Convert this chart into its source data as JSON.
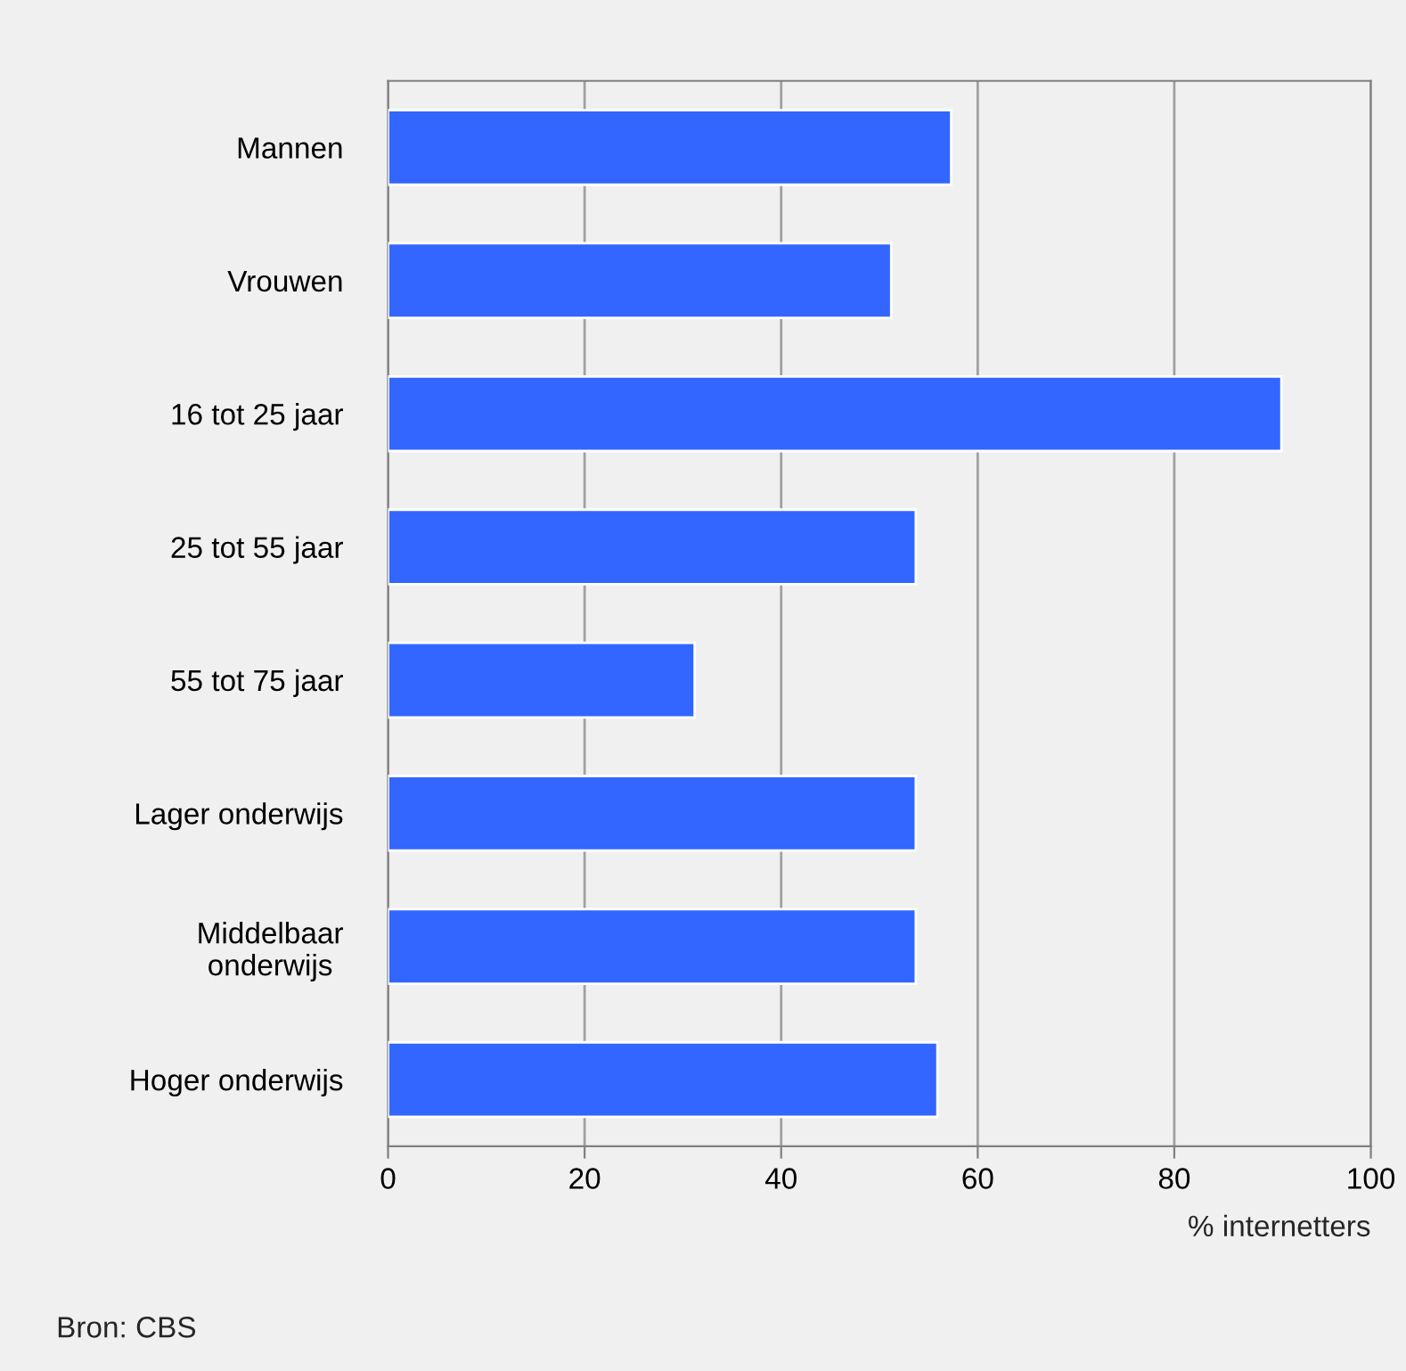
{
  "chart_data": {
    "type": "bar",
    "orientation": "horizontal",
    "categories": [
      "Mannen",
      "Vrouwen",
      "16 tot 25 jaar",
      "25 tot 55 jaar",
      "55 tot 75 jaar",
      "Lager onderwijs",
      "Middelbaar\nonderwijs",
      "Hoger onderwijs"
    ],
    "values": [
      57.3,
      51.2,
      90.9,
      53.7,
      31.2,
      53.7,
      53.7,
      55.9
    ],
    "color": "#3366ff",
    "xlim": [
      0,
      100
    ],
    "xticks": [
      0,
      20,
      40,
      60,
      80,
      100
    ],
    "xlabel": "% internetters",
    "grid": "x",
    "legend": false,
    "annotations": [
      "Bron: CBS"
    ]
  }
}
